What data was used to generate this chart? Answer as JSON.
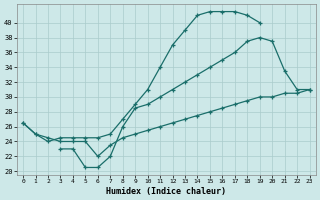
{
  "xlabel": "Humidex (Indice chaleur)",
  "bg_color": "#cde8e8",
  "grid_color": "#b8d8d8",
  "line_color": "#1a6e6a",
  "xlim": [
    -0.5,
    23.5
  ],
  "ylim": [
    19.5,
    42.5
  ],
  "xticks": [
    0,
    1,
    2,
    3,
    4,
    5,
    6,
    7,
    8,
    9,
    10,
    11,
    12,
    13,
    14,
    15,
    16,
    17,
    18,
    19,
    20,
    21,
    22,
    23
  ],
  "yticks": [
    20,
    22,
    24,
    26,
    28,
    30,
    32,
    34,
    36,
    38,
    40
  ],
  "line1_x": [
    0,
    1,
    2,
    3,
    4,
    5,
    6,
    7,
    8,
    9,
    10,
    11,
    12,
    13,
    14,
    15,
    16,
    17,
    18,
    19
  ],
  "line1_y": [
    26.5,
    25,
    24,
    24.5,
    24.5,
    24.5,
    24.5,
    25,
    27,
    29,
    31,
    34,
    37,
    39,
    41,
    41.5,
    41.5,
    41.5,
    41,
    40
  ],
  "line2_x": [
    3,
    4,
    5,
    6,
    7,
    8,
    9,
    10,
    11,
    12,
    13,
    14,
    15,
    16,
    17,
    18,
    19,
    20,
    21,
    22,
    23
  ],
  "line2_y": [
    23,
    23,
    20.5,
    20.5,
    22,
    26,
    28.5,
    29,
    30,
    31,
    32,
    33,
    34,
    35,
    36,
    37.5,
    38,
    37.5,
    33.5,
    31,
    31
  ],
  "line3_x": [
    0,
    1,
    2,
    3,
    4,
    5,
    6,
    7,
    8,
    9,
    10,
    11,
    12,
    13,
    14,
    15,
    16,
    17,
    18,
    19,
    20,
    21,
    22,
    23
  ],
  "line3_y": [
    26.5,
    25,
    24.5,
    24,
    24,
    24,
    22,
    23.5,
    24.5,
    25,
    25.5,
    26,
    26.5,
    27,
    27.5,
    28,
    28.5,
    29,
    29.5,
    30,
    30,
    30.5,
    30.5,
    31
  ]
}
